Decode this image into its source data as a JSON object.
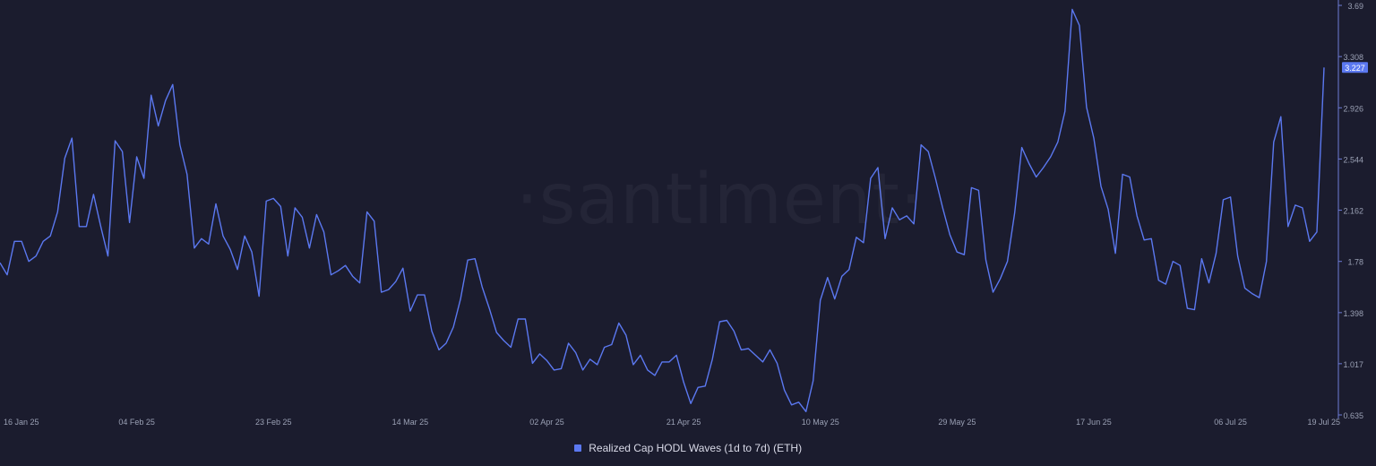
{
  "watermark": "·santiment·",
  "colors": {
    "background": "#1b1c2e",
    "line": "#5b78f0",
    "axis": "#6d7bd6",
    "tick_text": "#9aa0b4",
    "value_tag_bg": "#5b78f0",
    "value_tag_text": "#ffffff"
  },
  "legend": {
    "label": "Realized Cap HODL Waves (1d to 7d) (ETH)"
  },
  "chart_data": {
    "type": "line",
    "title": "",
    "xlabel": "",
    "ylabel": "",
    "x_date_range": [
      "2025-01-16",
      "2025-07-19"
    ],
    "x_tick_labels": [
      "16 Jan 25",
      "04 Feb 25",
      "23 Feb 25",
      "14 Mar 25",
      "02 Apr 25",
      "21 Apr 25",
      "10 May 25",
      "29 May 25",
      "17 Jun 25",
      "06 Jul 25",
      "19 Jul 25"
    ],
    "x_tick_dates": [
      "2025-01-16",
      "2025-02-04",
      "2025-02-23",
      "2025-03-14",
      "2025-04-02",
      "2025-04-21",
      "2025-05-10",
      "2025-05-29",
      "2025-06-17",
      "2025-07-06",
      "2025-07-19"
    ],
    "y_tick_labels": [
      "0.635",
      "1.017",
      "1.398",
      "1.78",
      "2.162",
      "2.544",
      "2.926",
      "3.308",
      "3.69"
    ],
    "y_tick_values": [
      0.635,
      1.017,
      1.398,
      1.78,
      2.162,
      2.544,
      2.926,
      3.308,
      3.69
    ],
    "ylim": [
      0.635,
      3.69
    ],
    "y_axis_position": "right",
    "grid": false,
    "last_value_label": "3.227",
    "series": [
      {
        "name": "Realized Cap HODL Waves (1d to 7d) (ETH)",
        "values": [
          1.77,
          1.68,
          1.93,
          1.93,
          1.78,
          1.82,
          1.93,
          1.97,
          2.15,
          2.55,
          2.7,
          2.04,
          2.04,
          2.28,
          2.04,
          1.82,
          2.68,
          2.6,
          2.07,
          2.56,
          2.4,
          3.02,
          2.79,
          2.98,
          3.1,
          2.65,
          2.43,
          1.88,
          1.95,
          1.91,
          2.21,
          1.97,
          1.87,
          1.72,
          1.97,
          1.85,
          1.52,
          2.23,
          2.25,
          2.19,
          1.82,
          2.18,
          2.11,
          1.88,
          2.13,
          2.0,
          1.68,
          1.71,
          1.75,
          1.67,
          1.62,
          2.15,
          2.08,
          1.55,
          1.57,
          1.63,
          1.73,
          1.41,
          1.53,
          1.53,
          1.26,
          1.12,
          1.17,
          1.29,
          1.5,
          1.79,
          1.8,
          1.59,
          1.43,
          1.25,
          1.19,
          1.14,
          1.35,
          1.35,
          1.02,
          1.09,
          1.04,
          0.97,
          0.98,
          1.17,
          1.1,
          0.97,
          1.05,
          1.01,
          1.14,
          1.16,
          1.32,
          1.23,
          1.01,
          1.08,
          0.97,
          0.93,
          1.03,
          1.03,
          1.08,
          0.88,
          0.72,
          0.84,
          0.85,
          1.05,
          1.33,
          1.34,
          1.26,
          1.12,
          1.13,
          1.08,
          1.03,
          1.12,
          1.02,
          0.82,
          0.71,
          0.73,
          0.66,
          0.89,
          1.49,
          1.66,
          1.5,
          1.67,
          1.72,
          1.96,
          1.92,
          2.4,
          2.48,
          1.95,
          2.18,
          2.09,
          2.12,
          2.06,
          2.65,
          2.6,
          2.4,
          2.18,
          1.98,
          1.85,
          1.83,
          2.33,
          2.31,
          1.79,
          1.55,
          1.65,
          1.78,
          2.14,
          2.63,
          2.51,
          2.41,
          2.48,
          2.56,
          2.67,
          2.9,
          3.66,
          3.54,
          2.93,
          2.7,
          2.34,
          2.17,
          1.84,
          2.43,
          2.41,
          2.12,
          1.94,
          1.95,
          1.64,
          1.61,
          1.78,
          1.75,
          1.43,
          1.42,
          1.8,
          1.62,
          1.84,
          2.24,
          2.26,
          1.82,
          1.58,
          1.54,
          1.51,
          1.78,
          2.67,
          2.86,
          2.04,
          2.2,
          2.18,
          1.93,
          2.0,
          3.227
        ]
      }
    ]
  }
}
